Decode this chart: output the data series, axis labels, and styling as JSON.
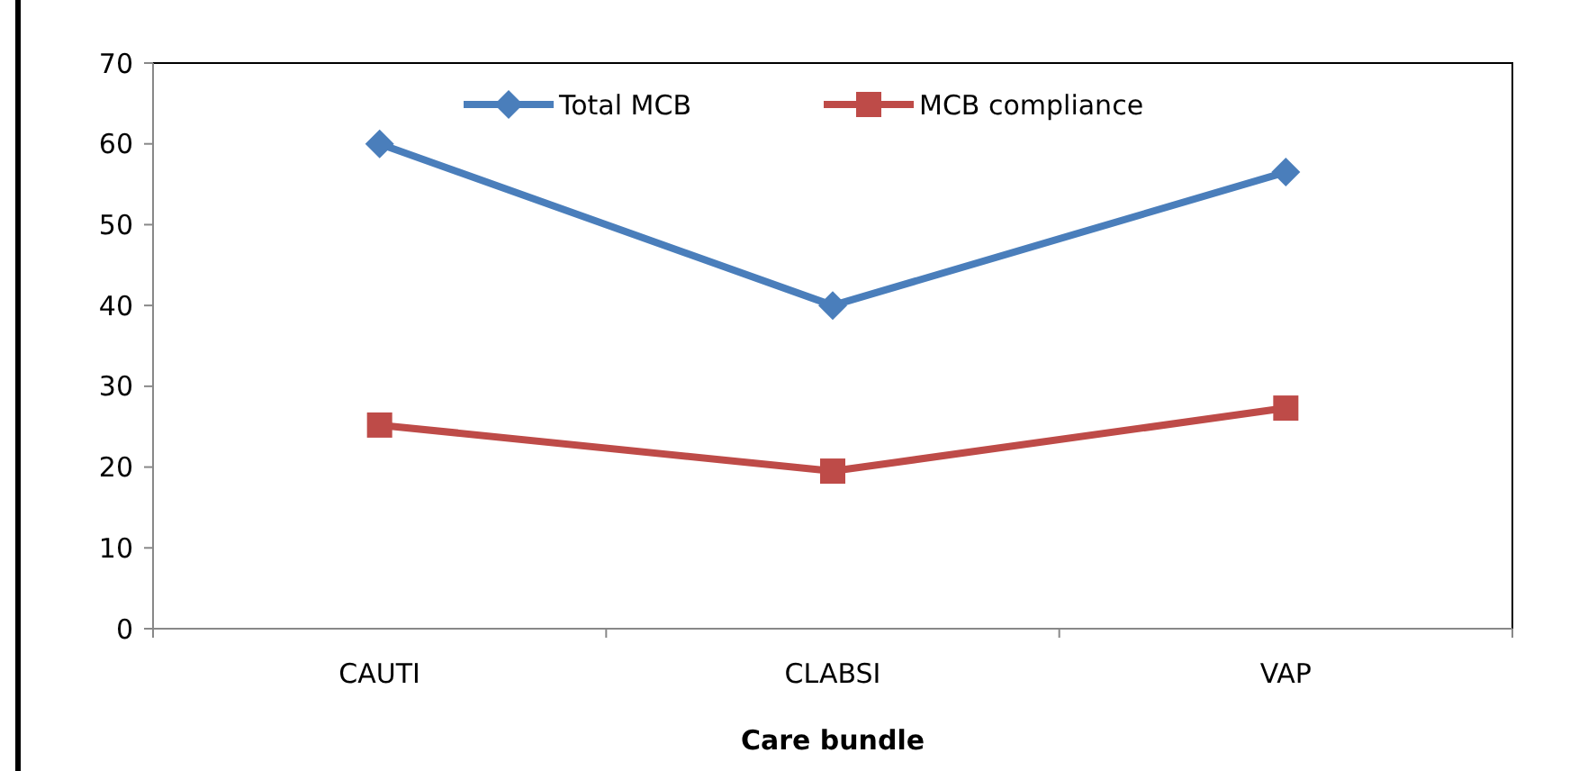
{
  "chart_data": {
    "type": "line",
    "xlabel": "Care bundle",
    "categories": [
      "CAUTI",
      "CLABSI",
      "VAP"
    ],
    "series": [
      {
        "name": "Total MCB",
        "color": "#4a7ebb",
        "values": [
          60,
          40,
          56.5
        ],
        "marker": "diamond"
      },
      {
        "name": "MCB compliance",
        "color": "#be4b48",
        "values": [
          25.2,
          19.5,
          27.3
        ],
        "marker": "square"
      }
    ],
    "ylim": [
      0,
      70
    ],
    "yticks": [
      0,
      10,
      20,
      30,
      40,
      50,
      60,
      70
    ],
    "grid": false,
    "legend": "top"
  }
}
